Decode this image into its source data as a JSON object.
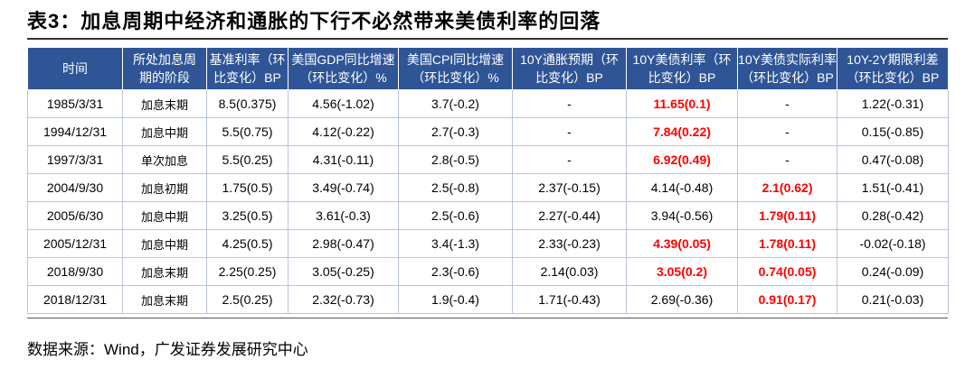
{
  "title": "表3：加息周期中经济和通胀的下行不必然带来美债利率的回落",
  "table": {
    "header": [
      [
        "时间"
      ],
      [
        "所处加息周",
        "期的阶段"
      ],
      [
        "基准利率（环",
        "比变化）BP"
      ],
      [
        "美国GDP同比增速",
        "（环比变化）%"
      ],
      [
        "美国CPI同比增速",
        "（环比变化）%"
      ],
      [
        "10Y通胀预期（环",
        "比变化）BP"
      ],
      [
        "10Y美债利率（环",
        "比变化）BP"
      ],
      [
        "10Y美债实际利率",
        "（环比变化）BP"
      ],
      [
        "10Y-2Y期限利差",
        "（环比变化）BP"
      ]
    ],
    "rows": [
      [
        "1985/3/31",
        "加息末期",
        "8.5(0.375)",
        "4.56(-1.02)",
        "3.7(-0.2)",
        "-",
        "11.65(0.1)",
        "-",
        "1.22(-0.31)"
      ],
      [
        "1994/12/31",
        "加息中期",
        "5.5(0.75)",
        "4.12(-0.22)",
        "2.7(-0.3)",
        "-",
        "7.84(0.22)",
        "-",
        "0.15(-0.85)"
      ],
      [
        "1997/3/31",
        "单次加息",
        "5.5(0.25)",
        "4.31(-0.11)",
        "2.8(-0.5)",
        "-",
        "6.92(0.49)",
        "-",
        "0.47(-0.08)"
      ],
      [
        "2004/9/30",
        "加息初期",
        "1.75(0.5)",
        "3.49(-0.74)",
        "2.5(-0.8)",
        "2.37(-0.15)",
        "4.14(-0.48)",
        "2.1(0.62)",
        "1.51(-0.41)"
      ],
      [
        "2005/6/30",
        "加息中期",
        "3.25(0.5)",
        "3.61(-0.3)",
        "2.5(-0.6)",
        "2.27(-0.44)",
        "3.94(-0.56)",
        "1.79(0.11)",
        "0.28(-0.42)"
      ],
      [
        "2005/12/31",
        "加息中期",
        "4.25(0.5)",
        "2.98(-0.47)",
        "3.4(-1.3)",
        "2.33(-0.23)",
        "4.39(0.05)",
        "1.78(0.11)",
        "-0.02(-0.18)"
      ],
      [
        "2018/9/30",
        "加息末期",
        "2.25(0.25)",
        "3.05(-0.25)",
        "2.3(-0.6)",
        "2.14(0.03)",
        "3.05(0.2)",
        "0.74(0.05)",
        "0.24(-0.09)"
      ],
      [
        "2018/12/31",
        "加息末期",
        "2.5(0.25)",
        "2.32(-0.73)",
        "1.9(-0.4)",
        "1.71(-0.43)",
        "2.69(-0.36)",
        "0.91(0.17)",
        "0.21(-0.03)"
      ]
    ],
    "highlight_color": "#ff0000",
    "highlighted": [
      [
        0,
        6
      ],
      [
        1,
        6
      ],
      [
        2,
        6
      ],
      [
        5,
        6
      ],
      [
        6,
        6
      ],
      [
        3,
        7
      ],
      [
        4,
        7
      ],
      [
        5,
        7
      ],
      [
        6,
        7
      ],
      [
        7,
        7
      ]
    ]
  },
  "source": "数据来源：Wind，广发证券发展研究中心"
}
